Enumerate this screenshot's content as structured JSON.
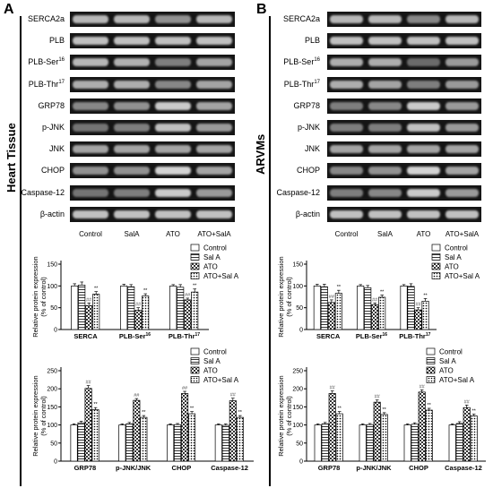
{
  "figure": {
    "panels": [
      {
        "letter": "A",
        "side_title": "Heart Tissue",
        "conditions": [
          "Control",
          "SalA",
          "ATO",
          "ATO+SalA"
        ],
        "blot_rows": [
          {
            "label": "SERCA2a",
            "sup": "",
            "intensity": [
              0.75,
              0.75,
              0.55,
              0.75
            ]
          },
          {
            "label": "PLB",
            "sup": "",
            "intensity": [
              0.8,
              0.8,
              0.8,
              0.8
            ]
          },
          {
            "label": "PLB-Ser",
            "sup": "16",
            "intensity": [
              0.75,
              0.72,
              0.45,
              0.65
            ]
          },
          {
            "label": "PLB-Thr",
            "sup": "17",
            "intensity": [
              0.7,
              0.7,
              0.5,
              0.65
            ]
          },
          {
            "label": "GRP78",
            "sup": "",
            "intensity": [
              0.5,
              0.55,
              0.85,
              0.65
            ]
          },
          {
            "label": "p-JNK",
            "sup": "",
            "intensity": [
              0.4,
              0.45,
              0.8,
              0.6
            ]
          },
          {
            "label": "JNK",
            "sup": "",
            "intensity": [
              0.65,
              0.65,
              0.65,
              0.65
            ]
          },
          {
            "label": "CHOP",
            "sup": "",
            "intensity": [
              0.55,
              0.55,
              0.9,
              0.65
            ]
          },
          {
            "label": "Caspase-12",
            "sup": "",
            "intensity": [
              0.4,
              0.45,
              0.85,
              0.6
            ]
          },
          {
            "label": "β-actin",
            "sup": "",
            "intensity": [
              0.8,
              0.8,
              0.8,
              0.8
            ]
          }
        ]
      },
      {
        "letter": "B",
        "side_title": "ARVMs",
        "conditions": [
          "Control",
          "SalA",
          "ATO",
          "ATO+SalA"
        ],
        "blot_rows": [
          {
            "label": "SERCA2a",
            "sup": "",
            "intensity": [
              0.75,
              0.75,
              0.5,
              0.75
            ]
          },
          {
            "label": "PLB",
            "sup": "",
            "intensity": [
              0.8,
              0.8,
              0.8,
              0.8
            ]
          },
          {
            "label": "PLB-Ser",
            "sup": "16",
            "intensity": [
              0.7,
              0.7,
              0.35,
              0.6
            ]
          },
          {
            "label": "PLB-Thr",
            "sup": "17",
            "intensity": [
              0.7,
              0.65,
              0.45,
              0.6
            ]
          },
          {
            "label": "GRP78",
            "sup": "",
            "intensity": [
              0.45,
              0.5,
              0.85,
              0.6
            ]
          },
          {
            "label": "p-JNK",
            "sup": "",
            "intensity": [
              0.45,
              0.45,
              0.8,
              0.6
            ]
          },
          {
            "label": "JNK",
            "sup": "",
            "intensity": [
              0.65,
              0.65,
              0.65,
              0.65
            ]
          },
          {
            "label": "CHOP",
            "sup": "",
            "intensity": [
              0.5,
              0.55,
              0.9,
              0.65
            ]
          },
          {
            "label": "Caspase-12",
            "sup": "",
            "intensity": [
              0.45,
              0.5,
              0.85,
              0.6
            ]
          },
          {
            "label": "β-actin",
            "sup": "",
            "intensity": [
              0.8,
              0.8,
              0.8,
              0.8
            ]
          }
        ]
      }
    ]
  },
  "chart_data": [
    {
      "type": "bar",
      "panel": "A",
      "ylabel": "Relative protein expression\n(% of control)",
      "ylim": [
        0,
        150
      ],
      "yticks": [
        0,
        50,
        100,
        150
      ],
      "categories": [
        {
          "name": "SERCA",
          "sup": ""
        },
        {
          "name": "PLB-Ser",
          "sup": "16"
        },
        {
          "name": "PLB-Thr",
          "sup": "17"
        }
      ],
      "legend": [
        "Control",
        "Sal A",
        "ATO",
        "ATO+Sal A"
      ],
      "series": [
        {
          "name": "Control",
          "values": [
            100,
            100,
            100
          ],
          "errors": [
            5,
            4,
            3
          ]
        },
        {
          "name": "Sal A",
          "values": [
            102,
            98,
            97
          ],
          "errors": [
            7,
            5,
            6
          ]
        },
        {
          "name": "ATO",
          "values": [
            55,
            44,
            68
          ],
          "errors": [
            6,
            6,
            4
          ]
        },
        {
          "name": "ATO+Sal A",
          "values": [
            81,
            77,
            86
          ],
          "errors": [
            6,
            5,
            7
          ]
        }
      ],
      "annotations": [
        {
          "category": 0,
          "series": 2,
          "text": "##"
        },
        {
          "category": 0,
          "series": 3,
          "text": "**"
        },
        {
          "category": 1,
          "series": 2,
          "text": "##"
        },
        {
          "category": 1,
          "series": 3,
          "text": "**"
        },
        {
          "category": 2,
          "series": 2,
          "text": "##"
        },
        {
          "category": 2,
          "series": 3,
          "text": "**"
        }
      ]
    },
    {
      "type": "bar",
      "panel": "A",
      "ylabel": "Relative protein expression\n(% of control)",
      "ylim": [
        0,
        250
      ],
      "yticks": [
        0,
        50,
        100,
        150,
        200,
        250
      ],
      "categories": [
        {
          "name": "GRP78",
          "sup": ""
        },
        {
          "name": "p-JNK/JNK",
          "sup": ""
        },
        {
          "name": "CHOP",
          "sup": ""
        },
        {
          "name": "Caspase-12",
          "sup": ""
        }
      ],
      "legend": [
        "Control",
        "Sal A",
        "ATO",
        "ATO+Sal A"
      ],
      "series": [
        {
          "name": "Control",
          "values": [
            100,
            100,
            100,
            100
          ],
          "errors": [
            3,
            3,
            3,
            3
          ]
        },
        {
          "name": "Sal A",
          "values": [
            106,
            103,
            101,
            99
          ],
          "errors": [
            4,
            4,
            3,
            4
          ]
        },
        {
          "name": "ATO",
          "values": [
            201,
            168,
            187,
            167
          ],
          "errors": [
            8,
            5,
            6,
            7
          ]
        },
        {
          "name": "ATO+Sal A",
          "values": [
            142,
            121,
            131,
            121
          ],
          "errors": [
            6,
            5,
            6,
            5
          ]
        }
      ],
      "annotations": [
        {
          "category": 0,
          "series": 2,
          "text": "##"
        },
        {
          "category": 0,
          "series": 3,
          "text": "**"
        },
        {
          "category": 1,
          "series": 2,
          "text": "##"
        },
        {
          "category": 1,
          "series": 3,
          "text": "**"
        },
        {
          "category": 2,
          "series": 2,
          "text": "##"
        },
        {
          "category": 2,
          "series": 3,
          "text": "**"
        },
        {
          "category": 3,
          "series": 2,
          "text": "##"
        },
        {
          "category": 3,
          "series": 3,
          "text": "**"
        }
      ]
    },
    {
      "type": "bar",
      "panel": "B",
      "ylabel": "Relative protein expression\n(% of control)",
      "ylim": [
        0,
        150
      ],
      "yticks": [
        0,
        50,
        100,
        150
      ],
      "categories": [
        {
          "name": "SERCA",
          "sup": ""
        },
        {
          "name": "PLB-Ser",
          "sup": "16"
        },
        {
          "name": "PLB-Thr",
          "sup": "17"
        }
      ],
      "legend": [
        "Control",
        "Sal A",
        "ATO",
        "ATO+Sal A"
      ],
      "series": [
        {
          "name": "Control",
          "values": [
            100,
            100,
            100
          ],
          "errors": [
            4,
            3,
            3
          ]
        },
        {
          "name": "Sal A",
          "values": [
            98,
            96,
            99
          ],
          "errors": [
            6,
            5,
            6
          ]
        },
        {
          "name": "ATO",
          "values": [
            62,
            57,
            45
          ],
          "errors": [
            6,
            4,
            5
          ]
        },
        {
          "name": "ATO+Sal A",
          "values": [
            83,
            74,
            65
          ],
          "errors": [
            7,
            5,
            6
          ]
        }
      ],
      "annotations": [
        {
          "category": 0,
          "series": 2,
          "text": "##"
        },
        {
          "category": 0,
          "series": 3,
          "text": "**"
        },
        {
          "category": 1,
          "series": 2,
          "text": "##"
        },
        {
          "category": 1,
          "series": 3,
          "text": "**"
        },
        {
          "category": 2,
          "series": 2,
          "text": "##"
        },
        {
          "category": 2,
          "series": 3,
          "text": "**"
        }
      ]
    },
    {
      "type": "bar",
      "panel": "B",
      "ylabel": "Relative protein expression\n(% of control)",
      "ylim": [
        0,
        250
      ],
      "yticks": [
        0,
        50,
        100,
        150,
        200,
        250
      ],
      "categories": [
        {
          "name": "GRP78",
          "sup": ""
        },
        {
          "name": "p-JNK/JNK",
          "sup": ""
        },
        {
          "name": "CHOP",
          "sup": ""
        },
        {
          "name": "Caspase-12",
          "sup": ""
        }
      ],
      "legend": [
        "Control",
        "Sal A",
        "ATO",
        "ATO+Sal A"
      ],
      "series": [
        {
          "name": "Control",
          "values": [
            100,
            100,
            100,
            100
          ],
          "errors": [
            3,
            3,
            3,
            3
          ]
        },
        {
          "name": "Sal A",
          "values": [
            103,
            101,
            102,
            104
          ],
          "errors": [
            4,
            3,
            4,
            5
          ]
        },
        {
          "name": "ATO",
          "values": [
            187,
            163,
            191,
            148
          ],
          "errors": [
            7,
            6,
            6,
            7
          ]
        },
        {
          "name": "ATO+Sal A",
          "values": [
            131,
            129,
            141,
            125
          ],
          "errors": [
            6,
            5,
            5,
            5
          ]
        }
      ],
      "annotations": [
        {
          "category": 0,
          "series": 2,
          "text": "##"
        },
        {
          "category": 0,
          "series": 3,
          "text": "**"
        },
        {
          "category": 1,
          "series": 2,
          "text": "##"
        },
        {
          "category": 1,
          "series": 3,
          "text": "**"
        },
        {
          "category": 2,
          "series": 2,
          "text": "##"
        },
        {
          "category": 2,
          "series": 3,
          "text": "**"
        },
        {
          "category": 3,
          "series": 2,
          "text": "##"
        },
        {
          "category": 3,
          "series": 3,
          "text": "**"
        }
      ]
    }
  ]
}
